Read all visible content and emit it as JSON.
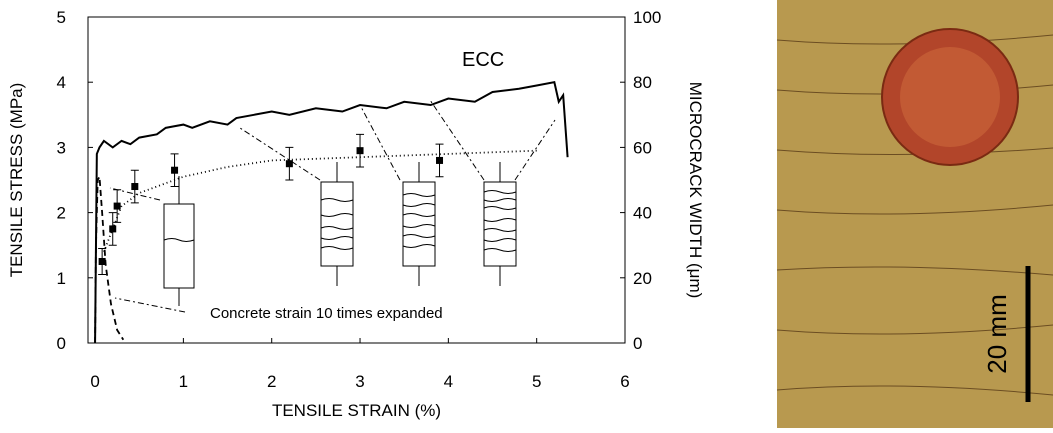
{
  "chart_data": {
    "type": "line",
    "xlabel": "TENSILE STRAIN (%)",
    "ylabel": "TENSILE STRESS (MPa)",
    "y2label": "MICROCRACK WIDTH (μm)",
    "xlim": [
      -0.08,
      6
    ],
    "ylim": [
      0,
      5
    ],
    "y2lim": [
      0,
      100
    ],
    "xticks": [
      0,
      1,
      2,
      3,
      4,
      5,
      6
    ],
    "yticks": [
      0,
      1,
      2,
      3,
      4,
      5
    ],
    "y2ticks": [
      0,
      20,
      40,
      60,
      80,
      100
    ],
    "annotations": [
      "Concrete strain 10 times expanded"
    ],
    "series": [
      {
        "name": "ECC",
        "color": "#000000",
        "style": "solid",
        "x": [
          0,
          0.02,
          0.05,
          0.1,
          0.2,
          0.3,
          0.4,
          0.5,
          0.7,
          0.8,
          1,
          1.1,
          1.3,
          1.5,
          1.6,
          1.8,
          2,
          2.2,
          2.5,
          2.8,
          3,
          3.3,
          3.5,
          3.8,
          4,
          4.3,
          4.5,
          4.8,
          5,
          5.2,
          5.25,
          5.3,
          5.35
        ],
        "values": [
          0,
          2.9,
          3.0,
          3.1,
          3.0,
          3.1,
          3.05,
          3.15,
          3.2,
          3.3,
          3.35,
          3.3,
          3.4,
          3.35,
          3.45,
          3.5,
          3.55,
          3.5,
          3.6,
          3.55,
          3.65,
          3.6,
          3.7,
          3.65,
          3.75,
          3.7,
          3.85,
          3.9,
          3.95,
          4.0,
          3.7,
          3.8,
          2.85
        ]
      },
      {
        "color": "#000000",
        "style": "dashed",
        "x": [
          0,
          0.01,
          0.03,
          0.05,
          0.08,
          0.12,
          0.18,
          0.25,
          0.32
        ],
        "values": [
          0,
          1.5,
          2.5,
          2.55,
          2.0,
          1.2,
          0.6,
          0.2,
          0.05
        ]
      },
      {
        "color": "#000000",
        "style": "dotted",
        "axis": "y2",
        "x": [
          0.1,
          0.3,
          0.5,
          1,
          1.5,
          2,
          3,
          4,
          5
        ],
        "values": [
          28,
          42,
          46,
          51,
          54,
          56,
          57,
          58,
          59
        ]
      },
      {
        "color": "#000000",
        "style": "none",
        "marker": "square",
        "axis": "y2",
        "x": [
          0.08,
          0.2,
          0.25,
          0.45,
          0.9,
          2.2,
          3.0,
          3.9
        ],
        "values": [
          25,
          35,
          42,
          48,
          53,
          55,
          59,
          56
        ],
        "errors": [
          4,
          5,
          5,
          5,
          5,
          5,
          5,
          5
        ]
      }
    ]
  },
  "photo": {
    "scale_label": "20 mm"
  }
}
